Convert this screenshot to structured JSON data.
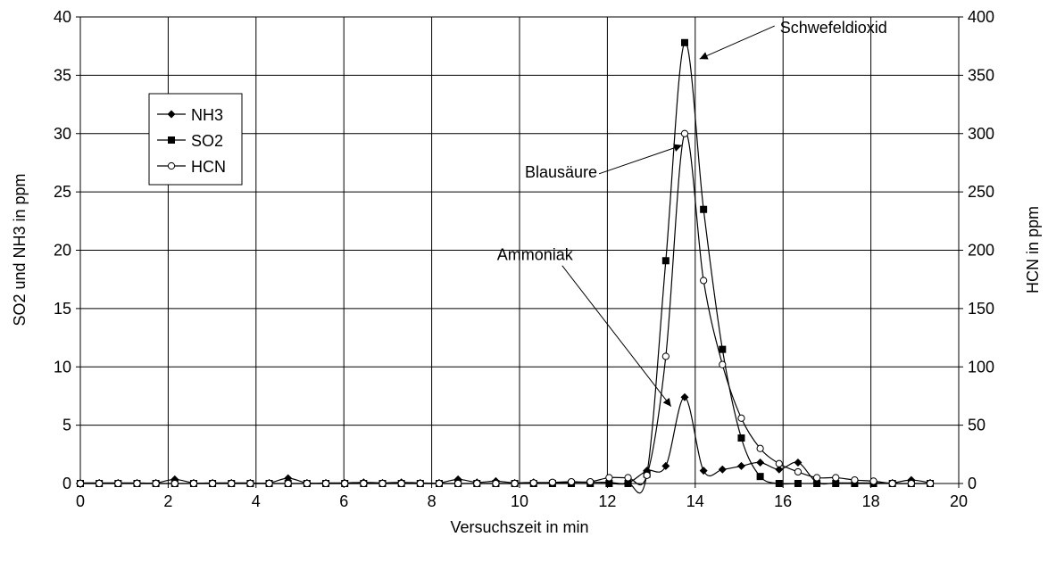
{
  "chart_data": {
    "type": "line",
    "xlabel": "Versuchszeit in min",
    "ylabel_left": "SO2 und NH3 in ppm",
    "ylabel_right": "HCN in ppm",
    "xlim": [
      0,
      20
    ],
    "ylim_left": [
      0,
      40
    ],
    "ylim_right": [
      0,
      400
    ],
    "x_ticks": [
      "0",
      "2",
      "4",
      "6",
      "8",
      "10",
      "12",
      "14",
      "16",
      "18",
      "20"
    ],
    "y_left_ticks": [
      "0",
      "5",
      "10",
      "15",
      "20",
      "25",
      "30",
      "35",
      "40"
    ],
    "y_right_ticks": [
      "0",
      "50",
      "100",
      "150",
      "200",
      "250",
      "300",
      "350",
      "400"
    ],
    "grid": true,
    "legend_position": "upper-left",
    "series": [
      {
        "name": "NH3",
        "axis": "left",
        "marker": "diamond",
        "x": [
          0,
          0.43,
          0.86,
          1.29,
          1.72,
          2.15,
          2.58,
          3.01,
          3.44,
          3.87,
          4.3,
          4.73,
          5.16,
          5.59,
          6.02,
          6.45,
          6.88,
          7.31,
          7.74,
          8.17,
          8.6,
          9.03,
          9.46,
          9.89,
          10.32,
          10.75,
          11.18,
          11.61,
          12.04,
          12.47,
          12.9,
          13.33,
          13.76,
          14.19,
          14.62,
          15.05,
          15.48,
          15.91,
          16.34,
          16.77,
          17.2,
          17.63,
          18.06,
          18.49,
          18.92,
          19.35
        ],
        "values": [
          0.05,
          0.05,
          0.05,
          0.05,
          0.05,
          0.35,
          0.05,
          0.05,
          0.05,
          0.05,
          0.05,
          0.45,
          0.05,
          0.05,
          0.05,
          0.1,
          0.05,
          0.1,
          0.05,
          0.05,
          0.35,
          0.1,
          0.2,
          0.05,
          0.1,
          0.05,
          0.1,
          0.1,
          0.1,
          0.05,
          1.1,
          1.5,
          7.4,
          1.1,
          1.2,
          1.5,
          1.8,
          1.2,
          1.8,
          0.1,
          0.05,
          0.05,
          0.05,
          0.05,
          0.3,
          0.05
        ]
      },
      {
        "name": "SO2",
        "axis": "left",
        "marker": "square",
        "x": [
          0,
          0.43,
          0.86,
          1.29,
          1.72,
          2.15,
          2.58,
          3.01,
          3.44,
          3.87,
          4.3,
          4.73,
          5.16,
          5.59,
          6.02,
          6.45,
          6.88,
          7.31,
          7.74,
          8.17,
          8.6,
          9.03,
          9.46,
          9.89,
          10.32,
          10.75,
          11.18,
          11.61,
          12.04,
          12.47,
          12.9,
          13.33,
          13.76,
          14.19,
          14.62,
          15.05,
          15.48,
          15.91,
          16.34,
          16.77,
          17.2,
          17.63,
          18.06,
          18.49,
          18.92,
          19.35
        ],
        "values": [
          0,
          0,
          0,
          0,
          0,
          0,
          0,
          0,
          0,
          0,
          0,
          0,
          0,
          0,
          0,
          0,
          0,
          0,
          0,
          0,
          0,
          0,
          0,
          0,
          0,
          0,
          0,
          0,
          0,
          0,
          0.8,
          19.1,
          37.8,
          23.5,
          11.5,
          3.9,
          0.6,
          0,
          0,
          0,
          0,
          0,
          0,
          0,
          0,
          0
        ]
      },
      {
        "name": "HCN",
        "axis": "right",
        "marker": "circle",
        "x": [
          0,
          0.43,
          0.86,
          1.29,
          1.72,
          2.15,
          2.58,
          3.01,
          3.44,
          3.87,
          4.3,
          4.73,
          5.16,
          5.59,
          6.02,
          6.45,
          6.88,
          7.31,
          7.74,
          8.17,
          8.6,
          9.03,
          9.46,
          9.89,
          10.32,
          10.75,
          11.18,
          11.61,
          12.04,
          12.47,
          12.9,
          13.33,
          13.76,
          14.19,
          14.62,
          15.05,
          15.48,
          15.91,
          16.34,
          16.77,
          17.2,
          17.63,
          18.06,
          18.49,
          18.92,
          19.35
        ],
        "values": [
          0,
          0,
          0,
          0,
          0,
          0,
          0,
          0,
          0,
          0,
          0,
          0,
          0,
          0,
          0,
          0,
          0,
          0,
          0,
          0,
          0,
          0,
          0,
          0,
          0.5,
          1.0,
          1.5,
          1.5,
          5.0,
          5.0,
          7.0,
          109,
          300,
          174,
          102,
          56,
          30,
          17,
          10,
          5,
          5,
          3,
          2,
          0,
          0,
          0
        ]
      }
    ],
    "annotations": [
      {
        "text": "Schwefeldioxid",
        "series": "SO2",
        "x": 14.1,
        "value": 36.4
      },
      {
        "text": "Blausäure",
        "series": "HCN",
        "x": 13.7,
        "value": 290
      },
      {
        "text": "Ammoniak",
        "series": "NH3",
        "x": 13.45,
        "value": 6.6
      }
    ]
  }
}
